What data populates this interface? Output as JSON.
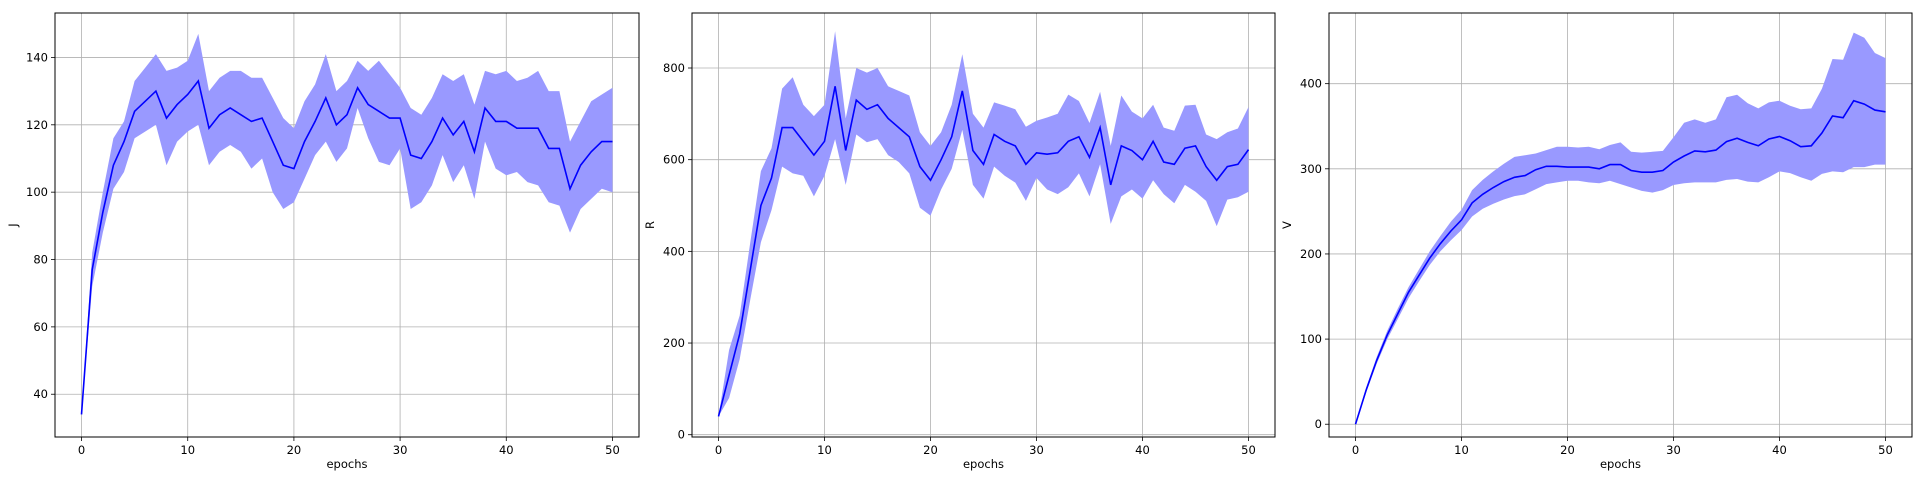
{
  "chart_data": [
    {
      "type": "area",
      "xlabel": "epochs",
      "ylabel": "J",
      "xlim": [
        -2.5,
        52.5
      ],
      "ylim": [
        27.3,
        153.2
      ],
      "xticks": [
        0,
        10,
        20,
        30,
        40,
        50
      ],
      "yticks": [
        40,
        60,
        80,
        100,
        120,
        140
      ],
      "grid": true,
      "line_color": "#0000ff",
      "band_color": "#9999ff",
      "x": [
        0,
        1,
        2,
        3,
        4,
        5,
        6,
        7,
        8,
        9,
        10,
        11,
        12,
        13,
        14,
        15,
        16,
        17,
        18,
        19,
        20,
        21,
        22,
        23,
        24,
        25,
        26,
        27,
        28,
        29,
        30,
        31,
        32,
        33,
        34,
        35,
        36,
        37,
        38,
        39,
        40,
        41,
        42,
        43,
        44,
        45,
        46,
        47,
        48,
        49,
        50
      ],
      "mean": [
        34,
        77,
        94,
        108,
        115,
        124,
        127,
        130,
        122,
        126,
        129,
        133,
        119,
        123,
        125,
        123,
        121,
        122,
        115,
        108,
        107,
        115,
        121,
        128,
        120,
        123,
        131,
        126,
        124,
        122,
        122,
        111,
        110,
        115,
        122,
        117,
        121,
        112,
        125,
        121,
        121,
        119,
        119,
        119,
        113,
        113,
        101,
        108,
        112,
        115,
        115
      ],
      "upper": [
        34,
        82,
        100,
        116,
        121,
        133,
        137,
        141,
        136,
        137,
        139,
        147,
        130,
        134,
        136,
        136,
        134,
        134,
        128,
        122,
        119,
        127,
        132,
        141,
        130,
        133,
        139,
        136,
        139,
        135,
        131,
        125,
        123,
        128,
        135,
        133,
        135,
        126,
        136,
        135,
        136,
        133,
        134,
        136,
        130,
        130,
        115,
        121,
        127,
        129,
        131
      ],
      "lower": [
        34,
        72,
        88,
        101,
        106,
        116,
        118,
        120,
        108,
        115,
        118,
        120,
        108,
        112,
        114,
        112,
        107,
        110,
        100,
        95,
        97,
        104,
        111,
        115,
        109,
        113,
        125,
        116,
        109,
        108,
        113,
        95,
        97,
        102,
        111,
        103,
        108,
        98,
        115,
        107,
        105,
        106,
        103,
        102,
        97,
        96,
        88,
        95,
        98,
        101,
        100
      ]
    },
    {
      "type": "area",
      "xlabel": "epochs",
      "ylabel": "R",
      "xlim": [
        -2.5,
        52.5
      ],
      "ylim": [
        -5,
        920
      ],
      "xticks": [
        0,
        10,
        20,
        30,
        40,
        50
      ],
      "yticks": [
        0,
        200,
        400,
        600,
        800
      ],
      "grid": true,
      "line_color": "#0000ff",
      "band_color": "#9999ff",
      "x": [
        0,
        1,
        2,
        3,
        4,
        5,
        6,
        7,
        8,
        9,
        10,
        11,
        12,
        13,
        14,
        15,
        16,
        17,
        18,
        19,
        20,
        21,
        22,
        23,
        24,
        25,
        26,
        27,
        28,
        29,
        30,
        31,
        32,
        33,
        34,
        35,
        36,
        37,
        38,
        39,
        40,
        41,
        42,
        43,
        44,
        45,
        46,
        47,
        48,
        49,
        50
      ],
      "mean": [
        40,
        130,
        220,
        360,
        500,
        560,
        670,
        670,
        640,
        610,
        640,
        760,
        620,
        730,
        710,
        720,
        690,
        670,
        650,
        585,
        555,
        600,
        650,
        750,
        620,
        590,
        655,
        640,
        630,
        590,
        615,
        612,
        615,
        640,
        650,
        605,
        670,
        545,
        630,
        620,
        600,
        640,
        595,
        590,
        625,
        630,
        585,
        555,
        585,
        590,
        622
      ],
      "upper": [
        40,
        185,
        260,
        420,
        575,
        625,
        755,
        780,
        720,
        695,
        720,
        880,
        690,
        800,
        790,
        800,
        760,
        750,
        740,
        660,
        630,
        660,
        720,
        830,
        700,
        670,
        725,
        718,
        710,
        672,
        685,
        692,
        700,
        742,
        728,
        680,
        748,
        630,
        740,
        705,
        690,
        720,
        670,
        663,
        718,
        720,
        655,
        645,
        660,
        668,
        715
      ],
      "lower": [
        40,
        80,
        165,
        295,
        420,
        490,
        585,
        570,
        565,
        520,
        565,
        645,
        545,
        655,
        638,
        645,
        610,
        595,
        570,
        495,
        478,
        535,
        580,
        665,
        545,
        515,
        585,
        565,
        550,
        510,
        560,
        535,
        525,
        540,
        570,
        520,
        590,
        460,
        520,
        535,
        515,
        555,
        525,
        505,
        545,
        530,
        510,
        455,
        513,
        518,
        530
      ]
    },
    {
      "type": "area",
      "xlabel": "epochs",
      "ylabel": "V",
      "xlim": [
        -2.5,
        52.5
      ],
      "ylim": [
        -15,
        483
      ],
      "xticks": [
        0,
        10,
        20,
        30,
        40,
        50
      ],
      "yticks": [
        0,
        100,
        200,
        300,
        400
      ],
      "grid": true,
      "line_color": "#0000ff",
      "band_color": "#9999ff",
      "x": [
        0,
        1,
        2,
        3,
        4,
        5,
        6,
        7,
        8,
        9,
        10,
        11,
        12,
        13,
        14,
        15,
        16,
        17,
        18,
        19,
        20,
        21,
        22,
        23,
        24,
        25,
        26,
        27,
        28,
        29,
        30,
        31,
        32,
        33,
        34,
        35,
        36,
        37,
        38,
        39,
        40,
        41,
        42,
        43,
        44,
        45,
        46,
        47,
        48,
        49,
        50
      ],
      "mean": [
        0,
        40,
        75,
        105,
        130,
        155,
        175,
        195,
        212,
        227,
        240,
        260,
        270,
        278,
        285,
        290,
        292,
        299,
        303,
        303,
        302,
        302,
        302,
        300,
        305,
        305,
        298,
        296,
        296,
        298,
        308,
        315,
        321,
        320,
        322,
        332,
        336,
        331,
        327,
        335,
        338,
        333,
        326,
        327,
        342,
        362,
        360,
        380,
        376,
        369,
        367
      ],
      "upper": [
        0,
        43,
        79,
        110,
        136,
        161,
        182,
        203,
        221,
        238,
        252,
        275,
        287,
        297,
        306,
        314,
        316,
        318,
        322,
        326,
        326,
        325,
        326,
        323,
        328,
        331,
        320,
        319,
        320,
        321,
        337,
        354,
        358,
        354,
        358,
        384,
        387,
        377,
        371,
        378,
        380,
        374,
        370,
        371,
        394,
        429,
        428,
        460,
        454,
        436,
        430
      ],
      "lower": [
        0,
        37,
        71,
        100,
        124,
        148,
        168,
        187,
        203,
        216,
        228,
        244,
        253,
        259,
        264,
        268,
        270,
        276,
        282,
        284,
        286,
        286,
        284,
        283,
        286,
        282,
        278,
        274,
        272,
        275,
        281,
        283,
        284,
        284,
        284,
        287,
        288,
        285,
        284,
        290,
        297,
        295,
        290,
        286,
        294,
        297,
        296,
        302,
        302,
        305,
        305
      ]
    }
  ]
}
